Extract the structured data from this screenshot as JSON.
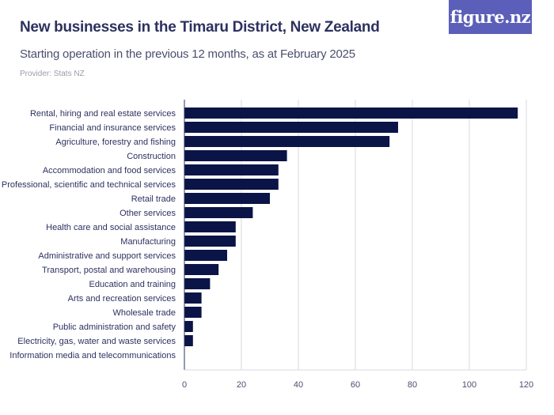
{
  "header": {
    "title": "New businesses in the Timaru District, New Zealand",
    "subtitle": "Starting operation in the previous 12 months, as at February 2025",
    "provider": "Provider: Stats NZ",
    "logo": "figure.nz"
  },
  "colors": {
    "bar": "#0b1446",
    "grid": "#d9d9df",
    "logo_bg": "#5b5fb9"
  },
  "chart_data": {
    "type": "bar",
    "orientation": "horizontal",
    "categories": [
      "Rental, hiring and real estate services",
      "Financial and insurance services",
      "Agriculture, forestry and fishing",
      "Construction",
      "Accommodation and food services",
      "Professional, scientific and technical services",
      "Retail trade",
      "Other services",
      "Health care and social assistance",
      "Manufacturing",
      "Administrative and support services",
      "Transport, postal and warehousing",
      "Education and training",
      "Arts and recreation services",
      "Wholesale trade",
      "Public administration and safety",
      "Electricity, gas, water and waste services",
      "Information media and telecommunications"
    ],
    "values": [
      117,
      75,
      72,
      36,
      33,
      33,
      30,
      24,
      18,
      18,
      15,
      12,
      9,
      6,
      6,
      3,
      3,
      0
    ],
    "xlim": [
      0,
      120
    ],
    "xticks": [
      0,
      20,
      40,
      60,
      80,
      100,
      120
    ],
    "grid": true
  }
}
